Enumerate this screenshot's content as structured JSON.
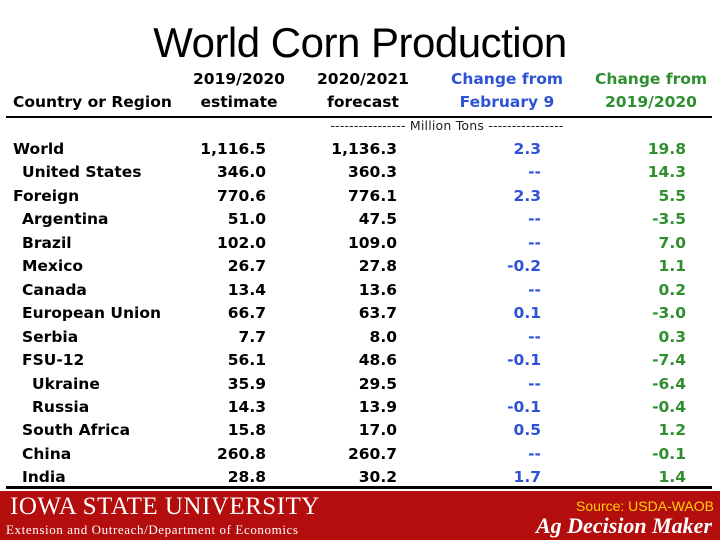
{
  "title": "World Corn Production",
  "table": {
    "headers": {
      "region": "Country or Region",
      "col_a": [
        "2019/2020",
        "estimate"
      ],
      "col_b": [
        "2020/2021",
        "forecast"
      ],
      "col_c": [
        "Change from",
        "February 9"
      ],
      "col_d": [
        "Change from",
        "2019/2020"
      ]
    },
    "units_label": "---------------- Million Tons ----------------",
    "rows": [
      {
        "name": "World",
        "indent": 0,
        "a": "1,116.5",
        "b": "1,136.3",
        "c": "2.3",
        "d": "19.8"
      },
      {
        "name": "United States",
        "indent": 1,
        "a": "346.0",
        "b": "360.3",
        "c": "--",
        "d": "14.3"
      },
      {
        "name": "Foreign",
        "indent": 0,
        "a": "770.6",
        "b": "776.1",
        "c": "2.3",
        "d": "5.5"
      },
      {
        "name": "Argentina",
        "indent": 1,
        "a": "51.0",
        "b": "47.5",
        "c": "--",
        "d": "-3.5"
      },
      {
        "name": "Brazil",
        "indent": 1,
        "a": "102.0",
        "b": "109.0",
        "c": "--",
        "d": "7.0"
      },
      {
        "name": "Mexico",
        "indent": 1,
        "a": "26.7",
        "b": "27.8",
        "c": "-0.2",
        "d": "1.1"
      },
      {
        "name": "Canada",
        "indent": 1,
        "a": "13.4",
        "b": "13.6",
        "c": "--",
        "d": "0.2"
      },
      {
        "name": "European Union",
        "indent": 1,
        "a": "66.7",
        "b": "63.7",
        "c": "0.1",
        "d": "-3.0"
      },
      {
        "name": "Serbia",
        "indent": 1,
        "a": "7.7",
        "b": "8.0",
        "c": "--",
        "d": "0.3"
      },
      {
        "name": "FSU-12",
        "indent": 1,
        "a": "56.1",
        "b": "48.6",
        "c": "-0.1",
        "d": "-7.4"
      },
      {
        "name": "Ukraine",
        "indent": 2,
        "a": "35.9",
        "b": "29.5",
        "c": "--",
        "d": "-6.4"
      },
      {
        "name": "Russia",
        "indent": 2,
        "a": "14.3",
        "b": "13.9",
        "c": "-0.1",
        "d": "-0.4"
      },
      {
        "name": "South Africa",
        "indent": 1,
        "a": "15.8",
        "b": "17.0",
        "c": "0.5",
        "d": "1.2"
      },
      {
        "name": "China",
        "indent": 1,
        "a": "260.8",
        "b": "260.7",
        "c": "--",
        "d": "-0.1"
      },
      {
        "name": "India",
        "indent": 1,
        "a": "28.8",
        "b": "30.2",
        "c": "1.7",
        "d": "1.4"
      }
    ]
  },
  "colors": {
    "change_feb": "#2e52d6",
    "change_prev": "#2f8f2f",
    "footer_bg": "#b30d0d",
    "source": "#ffd200"
  },
  "footer": {
    "logo_text": "IOWA STATE UNIVERSITY",
    "extension": "Extension and Outreach/Department of Economics",
    "source": "Source: USDA-WAOB",
    "brand": "Ag Decision Maker"
  }
}
